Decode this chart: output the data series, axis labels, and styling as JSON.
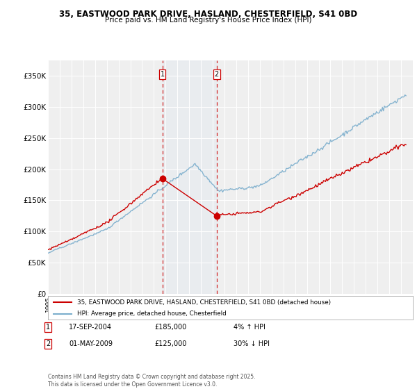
{
  "title": "35, EASTWOOD PARK DRIVE, HASLAND, CHESTERFIELD, S41 0BD",
  "subtitle": "Price paid vs. HM Land Registry's House Price Index (HPI)",
  "legend_line1": "35, EASTWOOD PARK DRIVE, HASLAND, CHESTERFIELD, S41 0BD (detached house)",
  "legend_line2": "HPI: Average price, detached house, Chesterfield",
  "footer": "Contains HM Land Registry data © Crown copyright and database right 2025.\nThis data is licensed under the Open Government Licence v3.0.",
  "transaction1_date": "17-SEP-2004",
  "transaction1_price": "£185,000",
  "transaction1_hpi": "4% ↑ HPI",
  "transaction2_date": "01-MAY-2009",
  "transaction2_price": "£125,000",
  "transaction2_hpi": "30% ↓ HPI",
  "ylim": [
    0,
    375000
  ],
  "yticks": [
    0,
    50000,
    100000,
    150000,
    200000,
    250000,
    300000,
    350000
  ],
  "ytick_labels": [
    "£0",
    "£50K",
    "£100K",
    "£150K",
    "£200K",
    "£250K",
    "£300K",
    "£350K"
  ],
  "color_property": "#cc0000",
  "color_hpi": "#7aadcc",
  "color_vline": "#cc0000",
  "background_color": "#ffffff",
  "plot_bg_color": "#efefef",
  "marker1_x": 2004.72,
  "marker1_y": 185000,
  "marker2_x": 2009.33,
  "marker2_y": 125000,
  "xmin": 1995,
  "xmax": 2026
}
